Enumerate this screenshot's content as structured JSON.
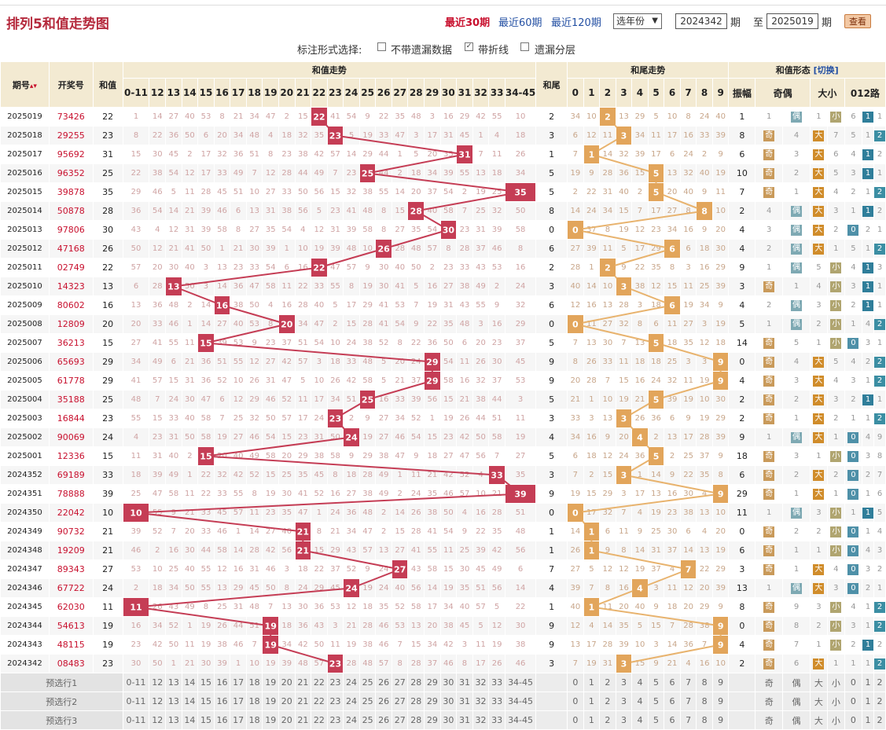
{
  "title": "排列5和值走势图",
  "nav": {
    "recent30": "最近30期",
    "recent60": "最近60期",
    "recent120": "最近120期",
    "year_select": "选年份",
    "from_issue": "2024342",
    "to_issue": "2025019",
    "unit1": "期",
    "to": "至",
    "unit2": "期",
    "query": "查看"
  },
  "options": {
    "label": "标注形式选择:",
    "opt1": "不带遗漏数据",
    "opt2": "带折线",
    "opt3": "遗漏分层",
    "opt1_checked": false,
    "opt2_checked": true,
    "opt3_checked": false
  },
  "headers": {
    "issue": "期号",
    "issue_sort": "▴▾",
    "nums": "开奖号",
    "sum": "和值",
    "sum_trend": "和值走势",
    "tail": "和尾",
    "tail_trend": "和尾走势",
    "shape": "和值形态",
    "switch": "[切换]",
    "amp": "振幅",
    "oddeven": "奇偶",
    "bigsmall": "大小",
    "road": "012路"
  },
  "sum_cols": [
    "0-11",
    "12",
    "13",
    "14",
    "15",
    "16",
    "17",
    "18",
    "19",
    "20",
    "21",
    "22",
    "23",
    "24",
    "25",
    "26",
    "27",
    "28",
    "29",
    "30",
    "31",
    "32",
    "33",
    "34-45"
  ],
  "tail_cols": [
    "0",
    "1",
    "2",
    "3",
    "4",
    "5",
    "6",
    "7",
    "8",
    "9"
  ],
  "rows": [
    {
      "issue": "2025019",
      "nums": "73426",
      "sum": 22,
      "tail": 2,
      "amp": 1,
      "oe": [
        1,
        "偶"
      ],
      "bs": [
        1,
        "小"
      ],
      "r": [
        6,
        1,
        1
      ],
      "rv": 1
    },
    {
      "issue": "2025018",
      "nums": "29255",
      "sum": 23,
      "tail": 3,
      "amp": 8,
      "oe": [
        "奇",
        4
      ],
      "bs": [
        "大",
        7
      ],
      "r": [
        5,
        1,
        2
      ],
      "rv": 2
    },
    {
      "issue": "2025017",
      "nums": "95692",
      "sum": 31,
      "tail": 1,
      "amp": 6,
      "oe": [
        "奇",
        3
      ],
      "bs": [
        "大",
        6
      ],
      "r": [
        4,
        1,
        2
      ],
      "rv": 1
    },
    {
      "issue": "2025016",
      "nums": "96352",
      "sum": 25,
      "tail": 5,
      "amp": 10,
      "oe": [
        "奇",
        2
      ],
      "bs": [
        "大",
        5
      ],
      "r": [
        3,
        1,
        1
      ],
      "rv": 1
    },
    {
      "issue": "2025015",
      "nums": "39878",
      "sum": 35,
      "tail": 5,
      "amp": 7,
      "oe": [
        "奇",
        1
      ],
      "bs": [
        "大",
        4
      ],
      "r": [
        2,
        1,
        2
      ],
      "rv": 2
    },
    {
      "issue": "2025014",
      "nums": "50878",
      "sum": 28,
      "tail": 8,
      "amp": 2,
      "oe": [
        4,
        "偶"
      ],
      "bs": [
        "大",
        3
      ],
      "r": [
        1,
        1,
        2
      ],
      "rv": 1
    },
    {
      "issue": "2025013",
      "nums": "97806",
      "sum": 30,
      "tail": 0,
      "amp": 4,
      "oe": [
        3,
        "偶"
      ],
      "bs": [
        "大",
        2
      ],
      "r": [
        0,
        2,
        1
      ],
      "rv": 0
    },
    {
      "issue": "2025012",
      "nums": "47168",
      "sum": 26,
      "tail": 6,
      "amp": 4,
      "oe": [
        2,
        "偶"
      ],
      "bs": [
        "大",
        1
      ],
      "r": [
        5,
        1,
        2
      ],
      "rv": 2
    },
    {
      "issue": "2025011",
      "nums": "02749",
      "sum": 22,
      "tail": 2,
      "amp": 9,
      "oe": [
        1,
        "偶"
      ],
      "bs": [
        5,
        "小"
      ],
      "r": [
        4,
        1,
        3
      ],
      "rv": 1
    },
    {
      "issue": "2025010",
      "nums": "14323",
      "sum": 13,
      "tail": 3,
      "amp": 3,
      "oe": [
        "奇",
        1
      ],
      "bs": [
        4,
        "小"
      ],
      "r": [
        3,
        1,
        1
      ],
      "rv": 1
    },
    {
      "issue": "2025009",
      "nums": "80602",
      "sum": 16,
      "tail": 6,
      "amp": 4,
      "oe": [
        2,
        "偶"
      ],
      "bs": [
        3,
        "小"
      ],
      "r": [
        2,
        1,
        1
      ],
      "rv": 1
    },
    {
      "issue": "2025008",
      "nums": "12809",
      "sum": 20,
      "tail": 0,
      "amp": 5,
      "oe": [
        1,
        "偶"
      ],
      "bs": [
        2,
        "小"
      ],
      "r": [
        1,
        4,
        2
      ],
      "rv": 2
    },
    {
      "issue": "2025007",
      "nums": "36213",
      "sum": 15,
      "tail": 5,
      "amp": 14,
      "oe": [
        "奇",
        5
      ],
      "bs": [
        1,
        "小"
      ],
      "r": [
        0,
        3,
        1
      ],
      "rv": 0
    },
    {
      "issue": "2025006",
      "nums": "65693",
      "sum": 29,
      "tail": 9,
      "amp": 0,
      "oe": [
        "奇",
        4
      ],
      "bs": [
        "大",
        5
      ],
      "r": [
        4,
        2,
        2
      ],
      "rv": 2
    },
    {
      "issue": "2025005",
      "nums": "61778",
      "sum": 29,
      "tail": 9,
      "amp": 4,
      "oe": [
        "奇",
        3
      ],
      "bs": [
        "大",
        4
      ],
      "r": [
        3,
        1,
        2
      ],
      "rv": 2
    },
    {
      "issue": "2025004",
      "nums": "35188",
      "sum": 25,
      "tail": 5,
      "amp": 2,
      "oe": [
        "奇",
        2
      ],
      "bs": [
        "大",
        3
      ],
      "r": [
        2,
        1,
        1
      ],
      "rv": 1
    },
    {
      "issue": "2025003",
      "nums": "16844",
      "sum": 23,
      "tail": 3,
      "amp": 2,
      "oe": [
        "奇",
        1
      ],
      "bs": [
        "大",
        2
      ],
      "r": [
        1,
        1,
        2
      ],
      "rv": 2
    },
    {
      "issue": "2025002",
      "nums": "90069",
      "sum": 24,
      "tail": 4,
      "amp": 9,
      "oe": [
        1,
        "偶"
      ],
      "bs": [
        "大",
        1
      ],
      "r": [
        0,
        4,
        9
      ],
      "rv": 0
    },
    {
      "issue": "2025001",
      "nums": "12336",
      "sum": 15,
      "tail": 5,
      "amp": 18,
      "oe": [
        "奇",
        3
      ],
      "bs": [
        1,
        "小"
      ],
      "r": [
        0,
        3,
        8
      ],
      "rv": 0
    },
    {
      "issue": "2024352",
      "nums": "69189",
      "sum": 33,
      "tail": 3,
      "amp": 6,
      "oe": [
        "奇",
        2
      ],
      "bs": [
        "大",
        2
      ],
      "r": [
        0,
        2,
        7
      ],
      "rv": 0
    },
    {
      "issue": "2024351",
      "nums": "78888",
      "sum": 39,
      "tail": 9,
      "amp": 29,
      "oe": [
        "奇",
        1
      ],
      "bs": [
        "大",
        1
      ],
      "r": [
        0,
        1,
        6
      ],
      "rv": 0
    },
    {
      "issue": "2024350",
      "nums": "22042",
      "sum": 10,
      "tail": 0,
      "amp": 11,
      "oe": [
        1,
        "偶"
      ],
      "bs": [
        3,
        "小"
      ],
      "r": [
        1,
        0,
        5
      ],
      "rv": 1
    },
    {
      "issue": "2024349",
      "nums": "90732",
      "sum": 21,
      "tail": 1,
      "amp": 0,
      "oe": [
        "奇",
        2
      ],
      "bs": [
        2,
        "小"
      ],
      "r": [
        0,
        1,
        4
      ],
      "rv": 0
    },
    {
      "issue": "2024348",
      "nums": "19209",
      "sum": 21,
      "tail": 1,
      "amp": 6,
      "oe": [
        "奇",
        1
      ],
      "bs": [
        1,
        "小"
      ],
      "r": [
        0,
        4,
        3
      ],
      "rv": 0
    },
    {
      "issue": "2024347",
      "nums": "89343",
      "sum": 27,
      "tail": 7,
      "amp": 3,
      "oe": [
        "奇",
        1
      ],
      "bs": [
        "大",
        4
      ],
      "r": [
        0,
        3,
        2
      ],
      "rv": 0
    },
    {
      "issue": "2024346",
      "nums": "67722",
      "sum": 24,
      "tail": 4,
      "amp": 13,
      "oe": [
        1,
        "偶"
      ],
      "bs": [
        "大",
        3
      ],
      "r": [
        0,
        2,
        1
      ],
      "rv": 0
    },
    {
      "issue": "2024345",
      "nums": "62030",
      "sum": 11,
      "tail": 1,
      "amp": 8,
      "oe": [
        "奇",
        9
      ],
      "bs": [
        3,
        "小"
      ],
      "r": [
        4,
        1,
        2
      ],
      "rv": 2
    },
    {
      "issue": "2024344",
      "nums": "54613",
      "sum": 19,
      "tail": 9,
      "amp": 0,
      "oe": [
        "奇",
        8
      ],
      "bs": [
        2,
        "小"
      ],
      "r": [
        3,
        1,
        2
      ],
      "rv": 2
    },
    {
      "issue": "2024343",
      "nums": "48115",
      "sum": 19,
      "tail": 9,
      "amp": 4,
      "oe": [
        "奇",
        7
      ],
      "bs": [
        1,
        "小"
      ],
      "r": [
        2,
        1,
        2
      ],
      "rv": 1
    },
    {
      "issue": "2024342",
      "nums": "08483",
      "sum": 23,
      "tail": 3,
      "amp": 2,
      "oe": [
        "奇",
        6
      ],
      "bs": [
        "大",
        1
      ],
      "r": [
        1,
        1,
        2
      ],
      "rv": 2
    }
  ],
  "preview_rows": [
    "预选行1",
    "预选行2",
    "预选行3"
  ],
  "preview_shape": [
    "奇",
    "偶",
    "大",
    "小",
    "0",
    "1",
    "2"
  ],
  "colors": {
    "sum_ball": "#c53d55",
    "tail_ball": "#e2a55b",
    "sum_line": "#c53d55",
    "tail_line": "#e8b36e",
    "header_bg": "#f3ead2",
    "title": "#b52a3d"
  }
}
